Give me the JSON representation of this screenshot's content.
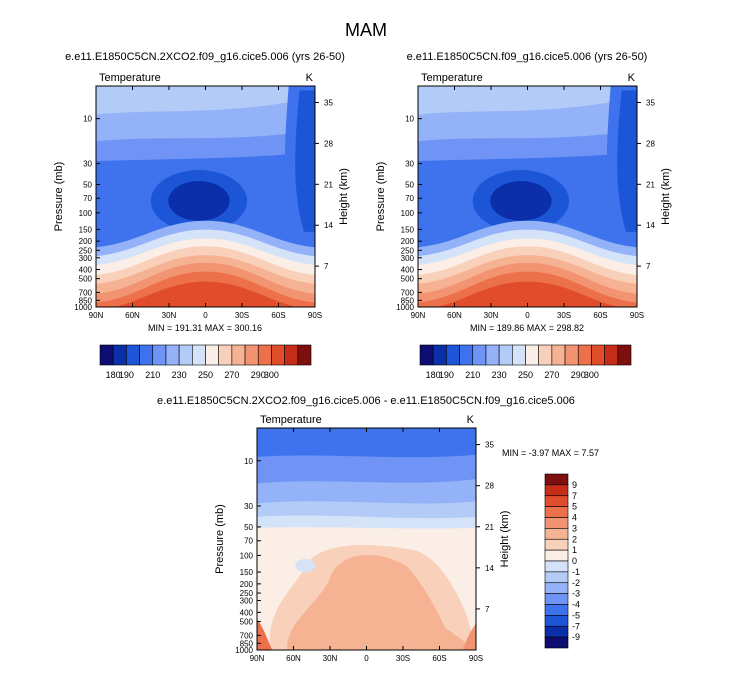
{
  "page_title": "MAM",
  "colors": {
    "scale": [
      "#0d0d73",
      "#0b2fa8",
      "#1c56d6",
      "#3f73ee",
      "#6f94f5",
      "#93b2f7",
      "#b3cbf7",
      "#d5e3f8",
      "#fbeee6",
      "#f9d1bb",
      "#f6b394",
      "#f29371",
      "#ec7049",
      "#e14d2a",
      "#c62d19",
      "#7e0f0f"
    ],
    "diff_scale": [
      "#0d0d73",
      "#0b2fa8",
      "#1c56d6",
      "#3f73ee",
      "#6f94f5",
      "#93b2f7",
      "#b3cbf7",
      "#d5e3f8",
      "#fbeee6",
      "#f9d1bb",
      "#f6b394",
      "#f29371",
      "#ec7049",
      "#e14d2a",
      "#c62d19",
      "#7e0f0f"
    ]
  },
  "chart_data": [
    {
      "type": "contour",
      "id": "panel-a",
      "title": "e.e11.E1850C5CN.2XCO2.f09_g16.cice5.006 (yrs 26-50)",
      "left_label": "Temperature",
      "units": "K",
      "ylabel": "Pressure (mb)",
      "y2label": "Height (km)",
      "x_ticks": [
        "90N",
        "60N",
        "30N",
        "0",
        "30S",
        "60S",
        "90S"
      ],
      "x_values": [
        90,
        60,
        30,
        0,
        -30,
        -60,
        -90
      ],
      "p_ticks": [
        10,
        30,
        50,
        70,
        100,
        150,
        200,
        250,
        300,
        400,
        500,
        700,
        850,
        1000
      ],
      "h_ticks": [
        35,
        28,
        21,
        14,
        7
      ],
      "stats": "MIN = 191.31  MAX = 300.16",
      "min": 191.31,
      "max": 300.16
    },
    {
      "type": "contour",
      "id": "panel-b",
      "title": "e.e11.E1850C5CN.f09_g16.cice5.006 (yrs 26-50)",
      "left_label": "Temperature",
      "units": "K",
      "ylabel": "Pressure (mb)",
      "y2label": "Height (km)",
      "x_ticks": [
        "90N",
        "60N",
        "30N",
        "0",
        "30S",
        "60S",
        "90S"
      ],
      "x_values": [
        90,
        60,
        30,
        0,
        -30,
        -60,
        -90
      ],
      "p_ticks": [
        10,
        30,
        50,
        70,
        100,
        150,
        200,
        250,
        300,
        400,
        500,
        700,
        850,
        1000
      ],
      "h_ticks": [
        35,
        28,
        21,
        14,
        7
      ],
      "stats": "MIN = 189.86  MAX = 298.82",
      "min": 189.86,
      "max": 298.82
    },
    {
      "type": "contour",
      "id": "panel-c",
      "title": "e.e11.E1850C5CN.2XCO2.f09_g16.cice5.006 - e.e11.E1850C5CN.f09_g16.cice5.006",
      "left_label": "Temperature",
      "units": "K",
      "ylabel": "Pressure (mb)",
      "y2label": "Height (km)",
      "x_ticks": [
        "90N",
        "60N",
        "30N",
        "0",
        "30S",
        "60S",
        "90S"
      ],
      "x_values": [
        90,
        60,
        30,
        0,
        -30,
        -60,
        -90
      ],
      "p_ticks": [
        10,
        30,
        50,
        70,
        100,
        150,
        200,
        250,
        300,
        400,
        500,
        700,
        850,
        1000
      ],
      "h_ticks": [
        35,
        28,
        21,
        14,
        7
      ],
      "stats": "MIN =  -3.97  MAX =   7.57",
      "min": -3.97,
      "max": 7.57
    }
  ],
  "colorbar": {
    "labels": [
      "180",
      "190",
      "210",
      "230",
      "250",
      "270",
      "290",
      "300"
    ],
    "levels": [
      180,
      190,
      200,
      210,
      220,
      230,
      240,
      250,
      260,
      270,
      280,
      290,
      300
    ]
  },
  "diff_colorbar": {
    "labels": [
      "9",
      "7",
      "5",
      "4",
      "3",
      "2",
      "1",
      "0",
      "-1",
      "-2",
      "-3",
      "-4",
      "-5",
      "-7",
      "-9"
    ]
  }
}
